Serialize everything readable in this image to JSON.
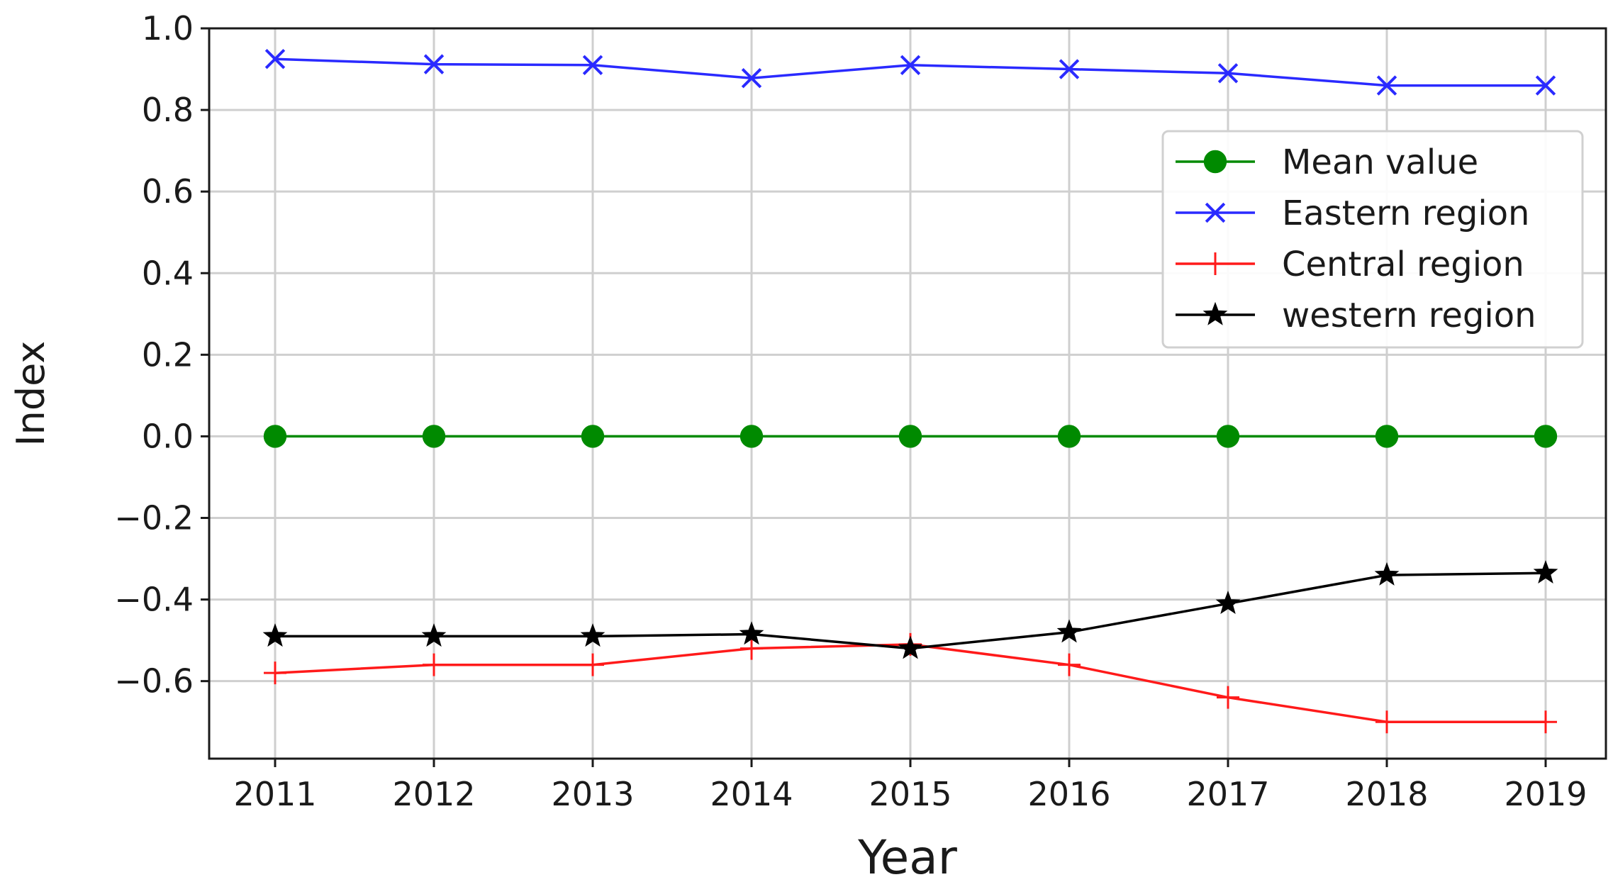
{
  "chart_data": {
    "type": "line",
    "title": "",
    "xlabel": "Year",
    "ylabel": "Index",
    "x": [
      2011,
      2012,
      2013,
      2014,
      2015,
      2016,
      2017,
      2018,
      2019
    ],
    "ylim": [
      -0.79,
      1.0
    ],
    "yticks": [
      1.0,
      0.8,
      0.6,
      0.4,
      0.2,
      0.0,
      -0.2,
      -0.4,
      -0.6
    ],
    "ytick_labels": [
      "1.0",
      "0.8",
      "0.6",
      "0.4",
      "0.2",
      "0.0",
      "−0.2",
      "−0.4",
      "−0.6"
    ],
    "xtick_labels": [
      "2011",
      "2012",
      "2013",
      "2014",
      "2015",
      "2016",
      "2017",
      "2018",
      "2019"
    ],
    "grid": true,
    "legend_position": "top-right",
    "series": [
      {
        "name": "Mean value",
        "color": "#008a00",
        "marker": "circle",
        "values": [
          0.0,
          0.0,
          0.0,
          0.0,
          0.0,
          0.0,
          0.0,
          0.0,
          0.0
        ]
      },
      {
        "name": "Eastern region",
        "color": "#2a2aff",
        "marker": "x",
        "values": [
          0.925,
          0.912,
          0.91,
          0.878,
          0.91,
          0.9,
          0.89,
          0.86,
          0.86
        ]
      },
      {
        "name": "Central region",
        "color": "#ff1a1a",
        "marker": "plus",
        "values": [
          -0.58,
          -0.56,
          -0.56,
          -0.52,
          -0.51,
          -0.56,
          -0.64,
          -0.7,
          -0.7
        ]
      },
      {
        "name": "western region",
        "color": "#000000",
        "marker": "star",
        "values": [
          -0.49,
          -0.49,
          -0.49,
          -0.485,
          -0.52,
          -0.48,
          -0.41,
          -0.34,
          -0.335
        ]
      }
    ]
  }
}
